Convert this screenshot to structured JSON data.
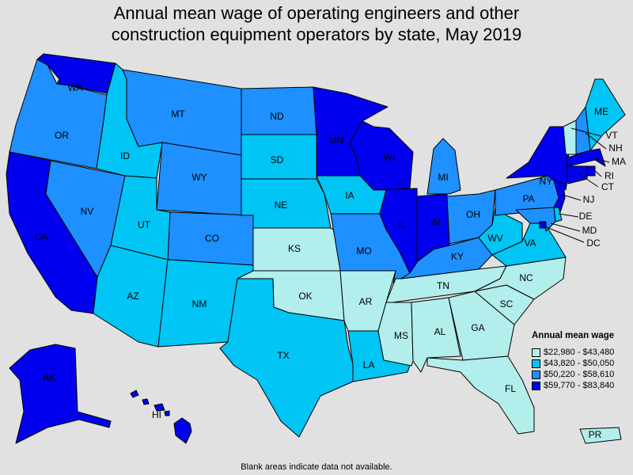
{
  "title": {
    "line1": "Annual mean wage of operating engineers and other",
    "line2": "construction equipment operators by state, May 2019"
  },
  "legend": {
    "title": "Annual mean wage",
    "bins": [
      {
        "label": "$22,980 - $43,480",
        "color": "#b2eeec"
      },
      {
        "label": "$43,820 - $50,050",
        "color": "#00c5f5"
      },
      {
        "label": "$50,220 - $58,610",
        "color": "#1e90ff"
      },
      {
        "label": "$59,770 - $83,840",
        "color": "#0000ee"
      }
    ]
  },
  "footnote": "Blank areas indicate data not available.",
  "states": [
    {
      "abbr": "WA",
      "bin": 3
    },
    {
      "abbr": "OR",
      "bin": 2
    },
    {
      "abbr": "CA",
      "bin": 3
    },
    {
      "abbr": "NV",
      "bin": 2
    },
    {
      "abbr": "ID",
      "bin": 1
    },
    {
      "abbr": "MT",
      "bin": 2
    },
    {
      "abbr": "WY",
      "bin": 2
    },
    {
      "abbr": "UT",
      "bin": 1
    },
    {
      "abbr": "AZ",
      "bin": 1
    },
    {
      "abbr": "CO",
      "bin": 2
    },
    {
      "abbr": "NM",
      "bin": 1
    },
    {
      "abbr": "ND",
      "bin": 2
    },
    {
      "abbr": "SD",
      "bin": 1
    },
    {
      "abbr": "NE",
      "bin": 1
    },
    {
      "abbr": "KS",
      "bin": 0
    },
    {
      "abbr": "OK",
      "bin": 0
    },
    {
      "abbr": "TX",
      "bin": 1
    },
    {
      "abbr": "MN",
      "bin": 3
    },
    {
      "abbr": "IA",
      "bin": 1
    },
    {
      "abbr": "MO",
      "bin": 2
    },
    {
      "abbr": "AR",
      "bin": 0
    },
    {
      "abbr": "LA",
      "bin": 1
    },
    {
      "abbr": "WI",
      "bin": 3
    },
    {
      "abbr": "IL",
      "bin": 3
    },
    {
      "abbr": "IN",
      "bin": 3
    },
    {
      "abbr": "MI",
      "bin": 2
    },
    {
      "abbr": "OH",
      "bin": 2
    },
    {
      "abbr": "KY",
      "bin": 2
    },
    {
      "abbr": "TN",
      "bin": 0
    },
    {
      "abbr": "MS",
      "bin": 0
    },
    {
      "abbr": "AL",
      "bin": 0
    },
    {
      "abbr": "GA",
      "bin": 0
    },
    {
      "abbr": "FL",
      "bin": 0
    },
    {
      "abbr": "SC",
      "bin": 0
    },
    {
      "abbr": "NC",
      "bin": 0
    },
    {
      "abbr": "VA",
      "bin": 1
    },
    {
      "abbr": "WV",
      "bin": 1
    },
    {
      "abbr": "PA",
      "bin": 2
    },
    {
      "abbr": "NY",
      "bin": 3
    },
    {
      "abbr": "VT",
      "bin": 0
    },
    {
      "abbr": "NH",
      "bin": 2
    },
    {
      "abbr": "ME",
      "bin": 1
    },
    {
      "abbr": "MA",
      "bin": 3
    },
    {
      "abbr": "RI",
      "bin": 3
    },
    {
      "abbr": "CT",
      "bin": 3
    },
    {
      "abbr": "NJ",
      "bin": 3
    },
    {
      "abbr": "DE",
      "bin": 1
    },
    {
      "abbr": "MD",
      "bin": 2
    },
    {
      "abbr": "DC",
      "bin": 3
    },
    {
      "abbr": "AK",
      "bin": 3
    },
    {
      "abbr": "HI",
      "bin": 3
    },
    {
      "abbr": "PR",
      "bin": 0
    }
  ]
}
